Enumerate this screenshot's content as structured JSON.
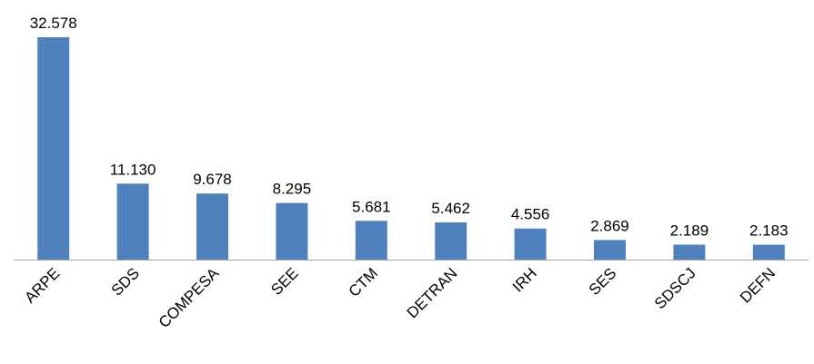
{
  "chart_data": {
    "type": "bar",
    "categories": [
      "ARPE",
      "SDS",
      "COMPESA",
      "SEE",
      "CTM",
      "DETRAN",
      "IRH",
      "SES",
      "SDSCJ",
      "DEFN"
    ],
    "values": [
      32578,
      11130,
      9678,
      8295,
      5681,
      5462,
      4556,
      2869,
      2189,
      2183
    ],
    "value_labels": [
      "32.578",
      "11.130",
      "9.678",
      "8.295",
      "5.681",
      "5.462",
      "4.556",
      "2.869",
      "2.189",
      "2.183"
    ],
    "color": "#4f81bd"
  }
}
